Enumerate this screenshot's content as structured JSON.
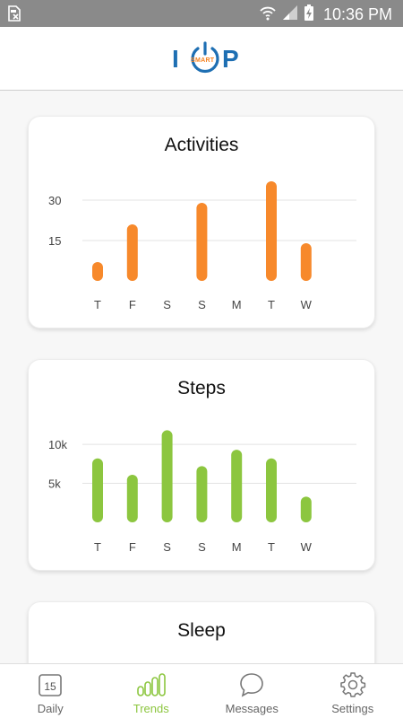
{
  "status_bar": {
    "time": "10:36 PM",
    "icons": [
      "sim-card-x-icon",
      "wifi-icon",
      "signal-icon",
      "battery-charging-icon"
    ]
  },
  "header": {
    "logo_letters": [
      "I",
      "P"
    ],
    "logo_badge": "SMART",
    "logo_icon": "power-icon",
    "logo_colors": {
      "blue": "#1e6fb3",
      "orange": "#f58220"
    }
  },
  "cards": {
    "activities": {
      "title": "Activities",
      "chart_data": {
        "type": "bar",
        "categories": [
          "T",
          "F",
          "S",
          "S",
          "M",
          "T",
          "W"
        ],
        "values": [
          7,
          21,
          0,
          29,
          0,
          37,
          14
        ],
        "ylim": [
          0,
          45
        ],
        "yticks": [
          {
            "value": 15,
            "label": "15"
          },
          {
            "value": 30,
            "label": "30"
          }
        ],
        "color": "#f7892b",
        "grid": true
      }
    },
    "steps": {
      "title": "Steps",
      "chart_data": {
        "type": "bar",
        "categories": [
          "T",
          "F",
          "S",
          "S",
          "M",
          "T",
          "W"
        ],
        "values": [
          8200,
          6100,
          11800,
          7200,
          9300,
          8200,
          3300
        ],
        "ylim": [
          0,
          13000
        ],
        "yticks": [
          {
            "value": 5000,
            "label": "5k"
          },
          {
            "value": 10000,
            "label": "10k"
          }
        ],
        "color": "#8cc63f",
        "grid": true
      }
    },
    "sleep": {
      "title": "Sleep"
    }
  },
  "bottom_nav": {
    "items": [
      {
        "label": "Daily",
        "icon": "calendar-icon",
        "badge": "15",
        "active": false
      },
      {
        "label": "Trends",
        "icon": "bar-chart-icon",
        "active": true
      },
      {
        "label": "Messages",
        "icon": "chat-bubble-icon",
        "active": false
      },
      {
        "label": "Settings",
        "icon": "gear-icon",
        "active": false
      }
    ],
    "active_color": "#8cc63f",
    "inactive_color": "#777777"
  }
}
